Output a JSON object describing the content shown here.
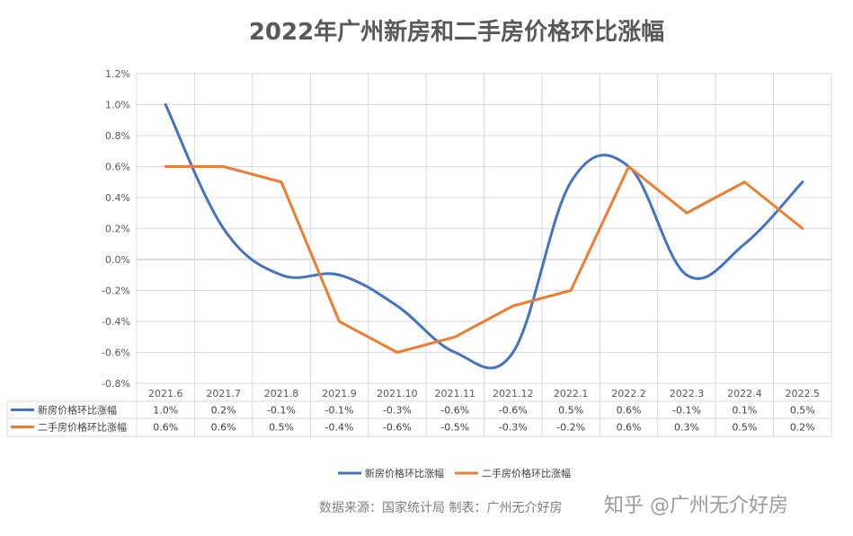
{
  "chart_data": {
    "type": "line",
    "title": "2022年广州新房和二手房价格环比涨幅",
    "categories": [
      "2021.6",
      "2021.7",
      "2021.8",
      "2021.9",
      "2021.10",
      "2021.11",
      "2021.12",
      "2022.1",
      "2022.2",
      "2022.3",
      "2022.4",
      "2022.5"
    ],
    "series": [
      {
        "name": "新房价格环比涨幅",
        "color": "#4472C4",
        "values": [
          1.0,
          0.2,
          -0.1,
          -0.1,
          -0.3,
          -0.6,
          -0.6,
          0.5,
          0.6,
          -0.1,
          0.1,
          0.5
        ],
        "labels": [
          "1.0%",
          "0.2%",
          "-0.1%",
          "-0.1%",
          "-0.3%",
          "-0.6%",
          "-0.6%",
          "0.5%",
          "0.6%",
          "-0.1%",
          "0.1%",
          "0.5%"
        ]
      },
      {
        "name": "二手房价格环比涨幅",
        "color": "#ED7D31",
        "values": [
          0.6,
          0.6,
          0.5,
          -0.4,
          -0.6,
          -0.5,
          -0.3,
          -0.2,
          0.6,
          0.3,
          0.5,
          0.2
        ],
        "labels": [
          "0.6%",
          "0.6%",
          "0.5%",
          "-0.4%",
          "-0.6%",
          "-0.5%",
          "-0.3%",
          "-0.2%",
          "0.6%",
          "0.3%",
          "0.5%",
          "0.2%"
        ]
      }
    ],
    "ylim": [
      -0.8,
      1.2
    ],
    "yticks": [
      1.2,
      1.0,
      0.8,
      0.6,
      0.4,
      0.2,
      0.0,
      -0.2,
      -0.4,
      -0.6,
      -0.8
    ],
    "ytick_labels": [
      "1.2%",
      "1.0%",
      "0.8%",
      "0.6%",
      "0.4%",
      "0.2%",
      "0.0%",
      "-0.2%",
      "-0.4%",
      "-0.6%",
      "-0.8%"
    ],
    "grid": true,
    "legend": "bottom",
    "data_table": true
  },
  "source_note": "数据来源：国家统计局  制表：广州无介好房",
  "watermark": "知乎 @广州无介好房"
}
